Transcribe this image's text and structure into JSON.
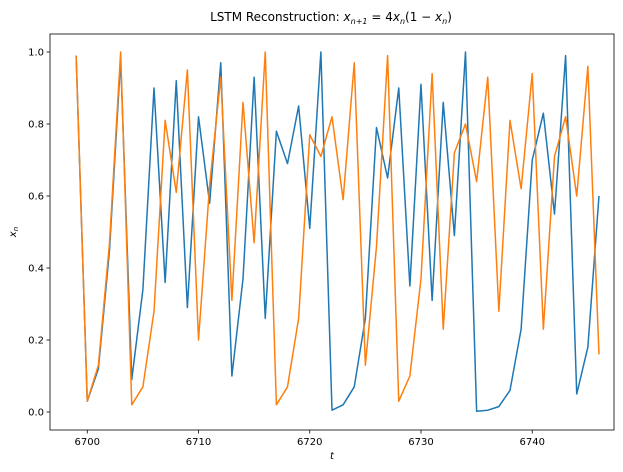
{
  "chart_data": {
    "type": "line",
    "title": "LSTM Reconstruction: x_{n+1} = 4x_n(1 - x_n)",
    "title_parts": {
      "prefix": "LSTM Reconstruction: ",
      "x1": "x",
      "sub1": "n+1",
      "eq": " = 4",
      "x2": "x",
      "sub2": "n",
      "mid": "(1 − ",
      "x3": "x",
      "sub3": "n",
      "end": ")"
    },
    "xlabel": "t",
    "ylabel": "x_n",
    "ylabel_parts": {
      "x": "x",
      "sub": "n"
    },
    "xlim": [
      6696.65,
      6747.35
    ],
    "ylim": [
      -0.05,
      1.05
    ],
    "xticks": [
      6700,
      6710,
      6720,
      6730,
      6740
    ],
    "yticks": [
      0.0,
      0.2,
      0.4,
      0.6,
      0.8,
      1.0
    ],
    "ytick_labels": [
      "0.0",
      "0.2",
      "0.4",
      "0.6",
      "0.8",
      "1.0"
    ],
    "grid": false,
    "legend": "none",
    "x": [
      6699,
      6700,
      6701,
      6702,
      6703,
      6704,
      6705,
      6706,
      6707,
      6708,
      6709,
      6710,
      6711,
      6712,
      6713,
      6714,
      6715,
      6716,
      6717,
      6718,
      6719,
      6720,
      6721,
      6722,
      6723,
      6724,
      6725,
      6726,
      6727,
      6728,
      6729,
      6730,
      6731,
      6732,
      6733,
      6734,
      6735,
      6736,
      6737,
      6738,
      6739,
      6740,
      6741,
      6742,
      6743,
      6744,
      6745,
      6746
    ],
    "series": [
      {
        "color": "#1f77b4",
        "values": [
          0.99,
          0.03,
          0.12,
          0.45,
          0.98,
          0.09,
          0.34,
          0.9,
          0.36,
          0.92,
          0.29,
          0.82,
          0.58,
          0.97,
          0.1,
          0.37,
          0.93,
          0.26,
          0.78,
          0.69,
          0.85,
          0.51,
          1.0,
          0.005,
          0.02,
          0.07,
          0.26,
          0.79,
          0.65,
          0.9,
          0.35,
          0.91,
          0.31,
          0.86,
          0.49,
          1.0,
          0.002,
          0.005,
          0.015,
          0.06,
          0.23,
          0.7,
          0.83,
          0.55,
          0.99,
          0.05,
          0.18,
          0.6
        ]
      },
      {
        "color": "#ff7f0e",
        "values": [
          0.99,
          0.03,
          0.13,
          0.47,
          1.0,
          0.02,
          0.07,
          0.28,
          0.81,
          0.61,
          0.95,
          0.2,
          0.63,
          0.93,
          0.31,
          0.86,
          0.47,
          1.0,
          0.02,
          0.07,
          0.26,
          0.77,
          0.71,
          0.82,
          0.59,
          0.97,
          0.13,
          0.46,
          0.99,
          0.03,
          0.1,
          0.37,
          0.94,
          0.23,
          0.72,
          0.8,
          0.64,
          0.93,
          0.28,
          0.81,
          0.62,
          0.94,
          0.23,
          0.71,
          0.82,
          0.6,
          0.96,
          0.16
        ]
      }
    ]
  }
}
